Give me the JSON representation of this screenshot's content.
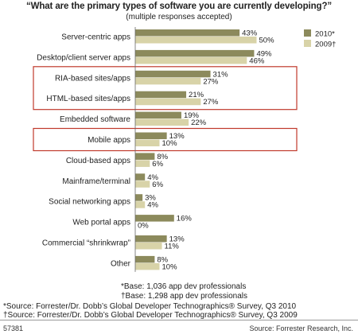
{
  "chart_data": {
    "type": "bar",
    "orientation": "horizontal",
    "title": "“What are the primary types of software you are currently developing?”",
    "subtitle": "(multiple responses accepted)",
    "categories": [
      "Server-centric apps",
      "Desktop/client server apps",
      "RIA-based sites/apps",
      "HTML-based sites/apps",
      "Embedded software",
      "Mobile apps",
      "Cloud-based apps",
      "Mainframe/terminal",
      "Social networking apps",
      "Web portal apps",
      "Commercial “shrinkwrap”",
      "Other"
    ],
    "series": [
      {
        "name": "2010*",
        "color": "#8c8a5c",
        "values": [
          43,
          49,
          31,
          21,
          19,
          13,
          8,
          4,
          3,
          16,
          13,
          8
        ]
      },
      {
        "name": "2009†",
        "color": "#d8d3a8",
        "values": [
          50,
          46,
          27,
          27,
          22,
          10,
          6,
          6,
          4,
          0,
          11,
          10
        ]
      }
    ],
    "value_suffix": "%",
    "xlim": [
      0,
      60
    ],
    "legend_position": "top-right",
    "highlight_box_color": "#c0392b",
    "highlight_groups": [
      [
        2,
        3
      ],
      [
        5
      ]
    ]
  },
  "notes": {
    "base_2010": "*Base: 1,036 app dev professionals",
    "base_2009": "†Base: 1,298 app dev professionals",
    "source_2010": "*Source: Forrester/Dr. Dobb’s Global Developer Technographics® Survey, Q3 2010",
    "source_2009": "†Source: Forrester/Dr. Dobb’s Global Developer Technographics® Survey, Q3 2009"
  },
  "footer": {
    "figure_id": "57381",
    "credit": "Source: Forrester Research, Inc."
  }
}
